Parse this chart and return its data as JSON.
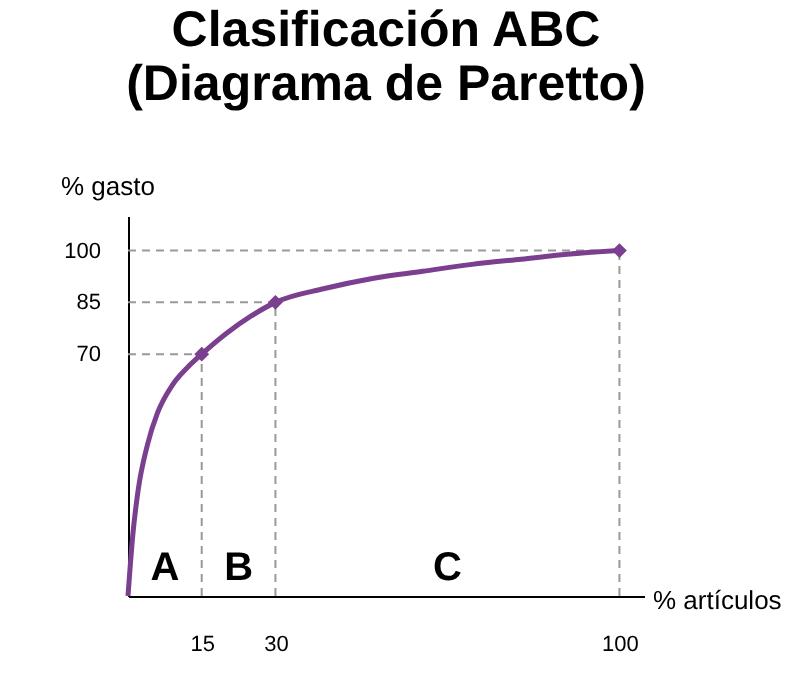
{
  "chart_data": {
    "type": "line",
    "title": "Clasificación ABC",
    "subtitle": "(Diagrama de Paretto)",
    "xlabel": "% artículos",
    "ylabel": "% gasto",
    "xlim": [
      0,
      105
    ],
    "ylim": [
      0,
      110
    ],
    "xticks": [
      15,
      30,
      100
    ],
    "yticks": [
      70,
      85,
      100
    ],
    "grid": false,
    "series": [
      {
        "color": "#7b3f8f",
        "marker": "none",
        "x": [
          0,
          1,
          2,
          4,
          6,
          9,
          12,
          15,
          20,
          25,
          30,
          40,
          50,
          60,
          70,
          80,
          90,
          100
        ],
        "values": [
          0,
          18,
          30,
          44,
          53,
          61,
          66,
          70,
          76,
          81,
          85,
          89,
          92,
          94,
          96,
          97.5,
          99,
          100
        ]
      },
      {
        "type": "scatter",
        "color": "#7b3f8f",
        "marker": "diamond",
        "x": [
          15,
          30,
          100
        ],
        "values": [
          70,
          85,
          100
        ]
      }
    ],
    "ref_lines": [
      {
        "axis": "y",
        "value": 70,
        "line_style": "dashed",
        "color": "#999999"
      },
      {
        "axis": "y",
        "value": 85,
        "line_style": "dashed",
        "color": "#999999"
      },
      {
        "axis": "y",
        "value": 100,
        "line_style": "dashed",
        "color": "#999999"
      },
      {
        "axis": "x",
        "value": 15,
        "line_style": "dashed",
        "color": "#999999"
      },
      {
        "axis": "x",
        "value": 30,
        "line_style": "dashed",
        "color": "#999999"
      },
      {
        "axis": "x",
        "value": 100,
        "line_style": "dashed",
        "color": "#999999"
      }
    ],
    "annotations": [
      "A",
      "B",
      "C"
    ]
  }
}
